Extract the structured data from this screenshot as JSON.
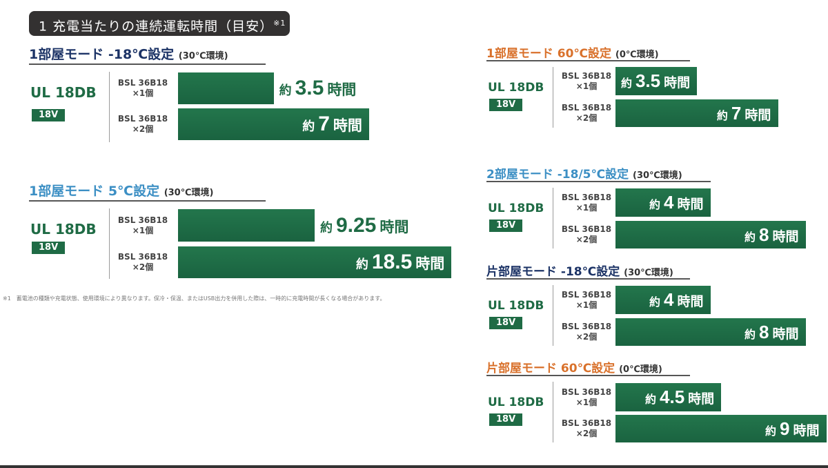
{
  "header": {
    "title": "1 充電当たりの連続運転時間（目安）",
    "note_mark": "※1"
  },
  "footnote": {
    "mark": "※1",
    "text": "蓄電池の種類や充電状態、使用環境により異なります。保冷・保温、またはUSB出力を併用した際は、一時的に充電時間が長くなる場合があります。"
  },
  "colors": {
    "green": "#1f6b45",
    "navy": "#1c3366",
    "lightblue": "#3c8fc4",
    "orange": "#d9712b"
  },
  "chart_data": {
    "type": "bar",
    "unit": "時間",
    "prefix": "約",
    "panels": [
      {
        "title": "1部屋モード -18℃設定",
        "env": "(30℃環境)",
        "color": "navy",
        "model": "UL 18DB",
        "voltage": "18V",
        "categories": [
          "BSL 36B18 ×1個",
          "BSL 36B18 ×2個"
        ],
        "values": [
          3.5,
          7
        ]
      },
      {
        "title": "1部屋モード 5℃設定",
        "env": "(30℃環境)",
        "color": "lightblue",
        "model": "UL 18DB",
        "voltage": "18V",
        "categories": [
          "BSL 36B18 ×1個",
          "BSL 36B18 ×2個"
        ],
        "values": [
          9.25,
          18.5
        ]
      },
      {
        "title": "1部屋モード 60℃設定",
        "env": "(0℃環境)",
        "color": "orange",
        "model": "UL 18DB",
        "voltage": "18V",
        "categories": [
          "BSL 36B18 ×1個",
          "BSL 36B18 ×2個"
        ],
        "values": [
          3.5,
          7
        ]
      },
      {
        "title": "2部屋モード -18/5℃設定",
        "env": "(30℃環境)",
        "color": "lightblue",
        "model": "UL 18DB",
        "voltage": "18V",
        "categories": [
          "BSL 36B18 ×1個",
          "BSL 36B18 ×2個"
        ],
        "values": [
          4,
          8
        ]
      },
      {
        "title": "片部屋モード -18℃設定",
        "env": "(30℃環境)",
        "color": "navy",
        "model": "UL 18DB",
        "voltage": "18V",
        "categories": [
          "BSL 36B18 ×1個",
          "BSL 36B18 ×2個"
        ],
        "values": [
          4,
          8
        ]
      },
      {
        "title": "片部屋モード 60℃設定",
        "env": "(0℃環境)",
        "color": "orange",
        "model": "UL 18DB",
        "voltage": "18V",
        "categories": [
          "BSL 36B18 ×1個",
          "BSL 36B18 ×2個"
        ],
        "values": [
          4.5,
          9
        ]
      }
    ]
  }
}
